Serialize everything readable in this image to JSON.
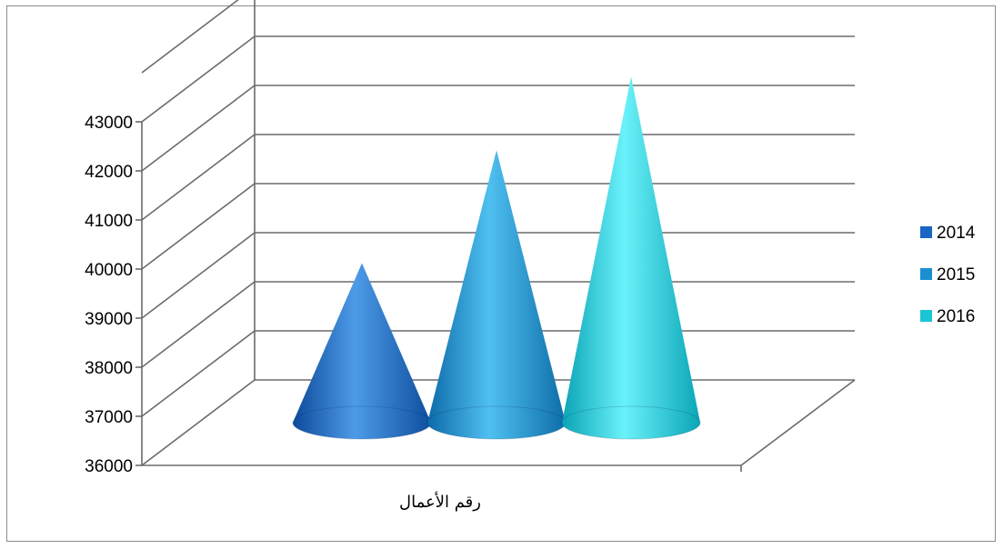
{
  "chart_data": {
    "type": "bar",
    "style": "3d-cone",
    "categories": [
      "رقم الأعمال"
    ],
    "series": [
      {
        "name": "2014",
        "values": [
          39250
        ],
        "color": "#1a66c2"
      },
      {
        "name": "2015",
        "values": [
          41550
        ],
        "color": "#1a8fd0"
      },
      {
        "name": "2016",
        "values": [
          43050
        ],
        "color": "#1ac6d6"
      }
    ],
    "ylim": [
      36000,
      43000
    ],
    "yticks": [
      "36000",
      "37000",
      "38000",
      "39000",
      "40000",
      "41000",
      "42000",
      "43000"
    ],
    "grid": true,
    "legend_position": "right"
  }
}
